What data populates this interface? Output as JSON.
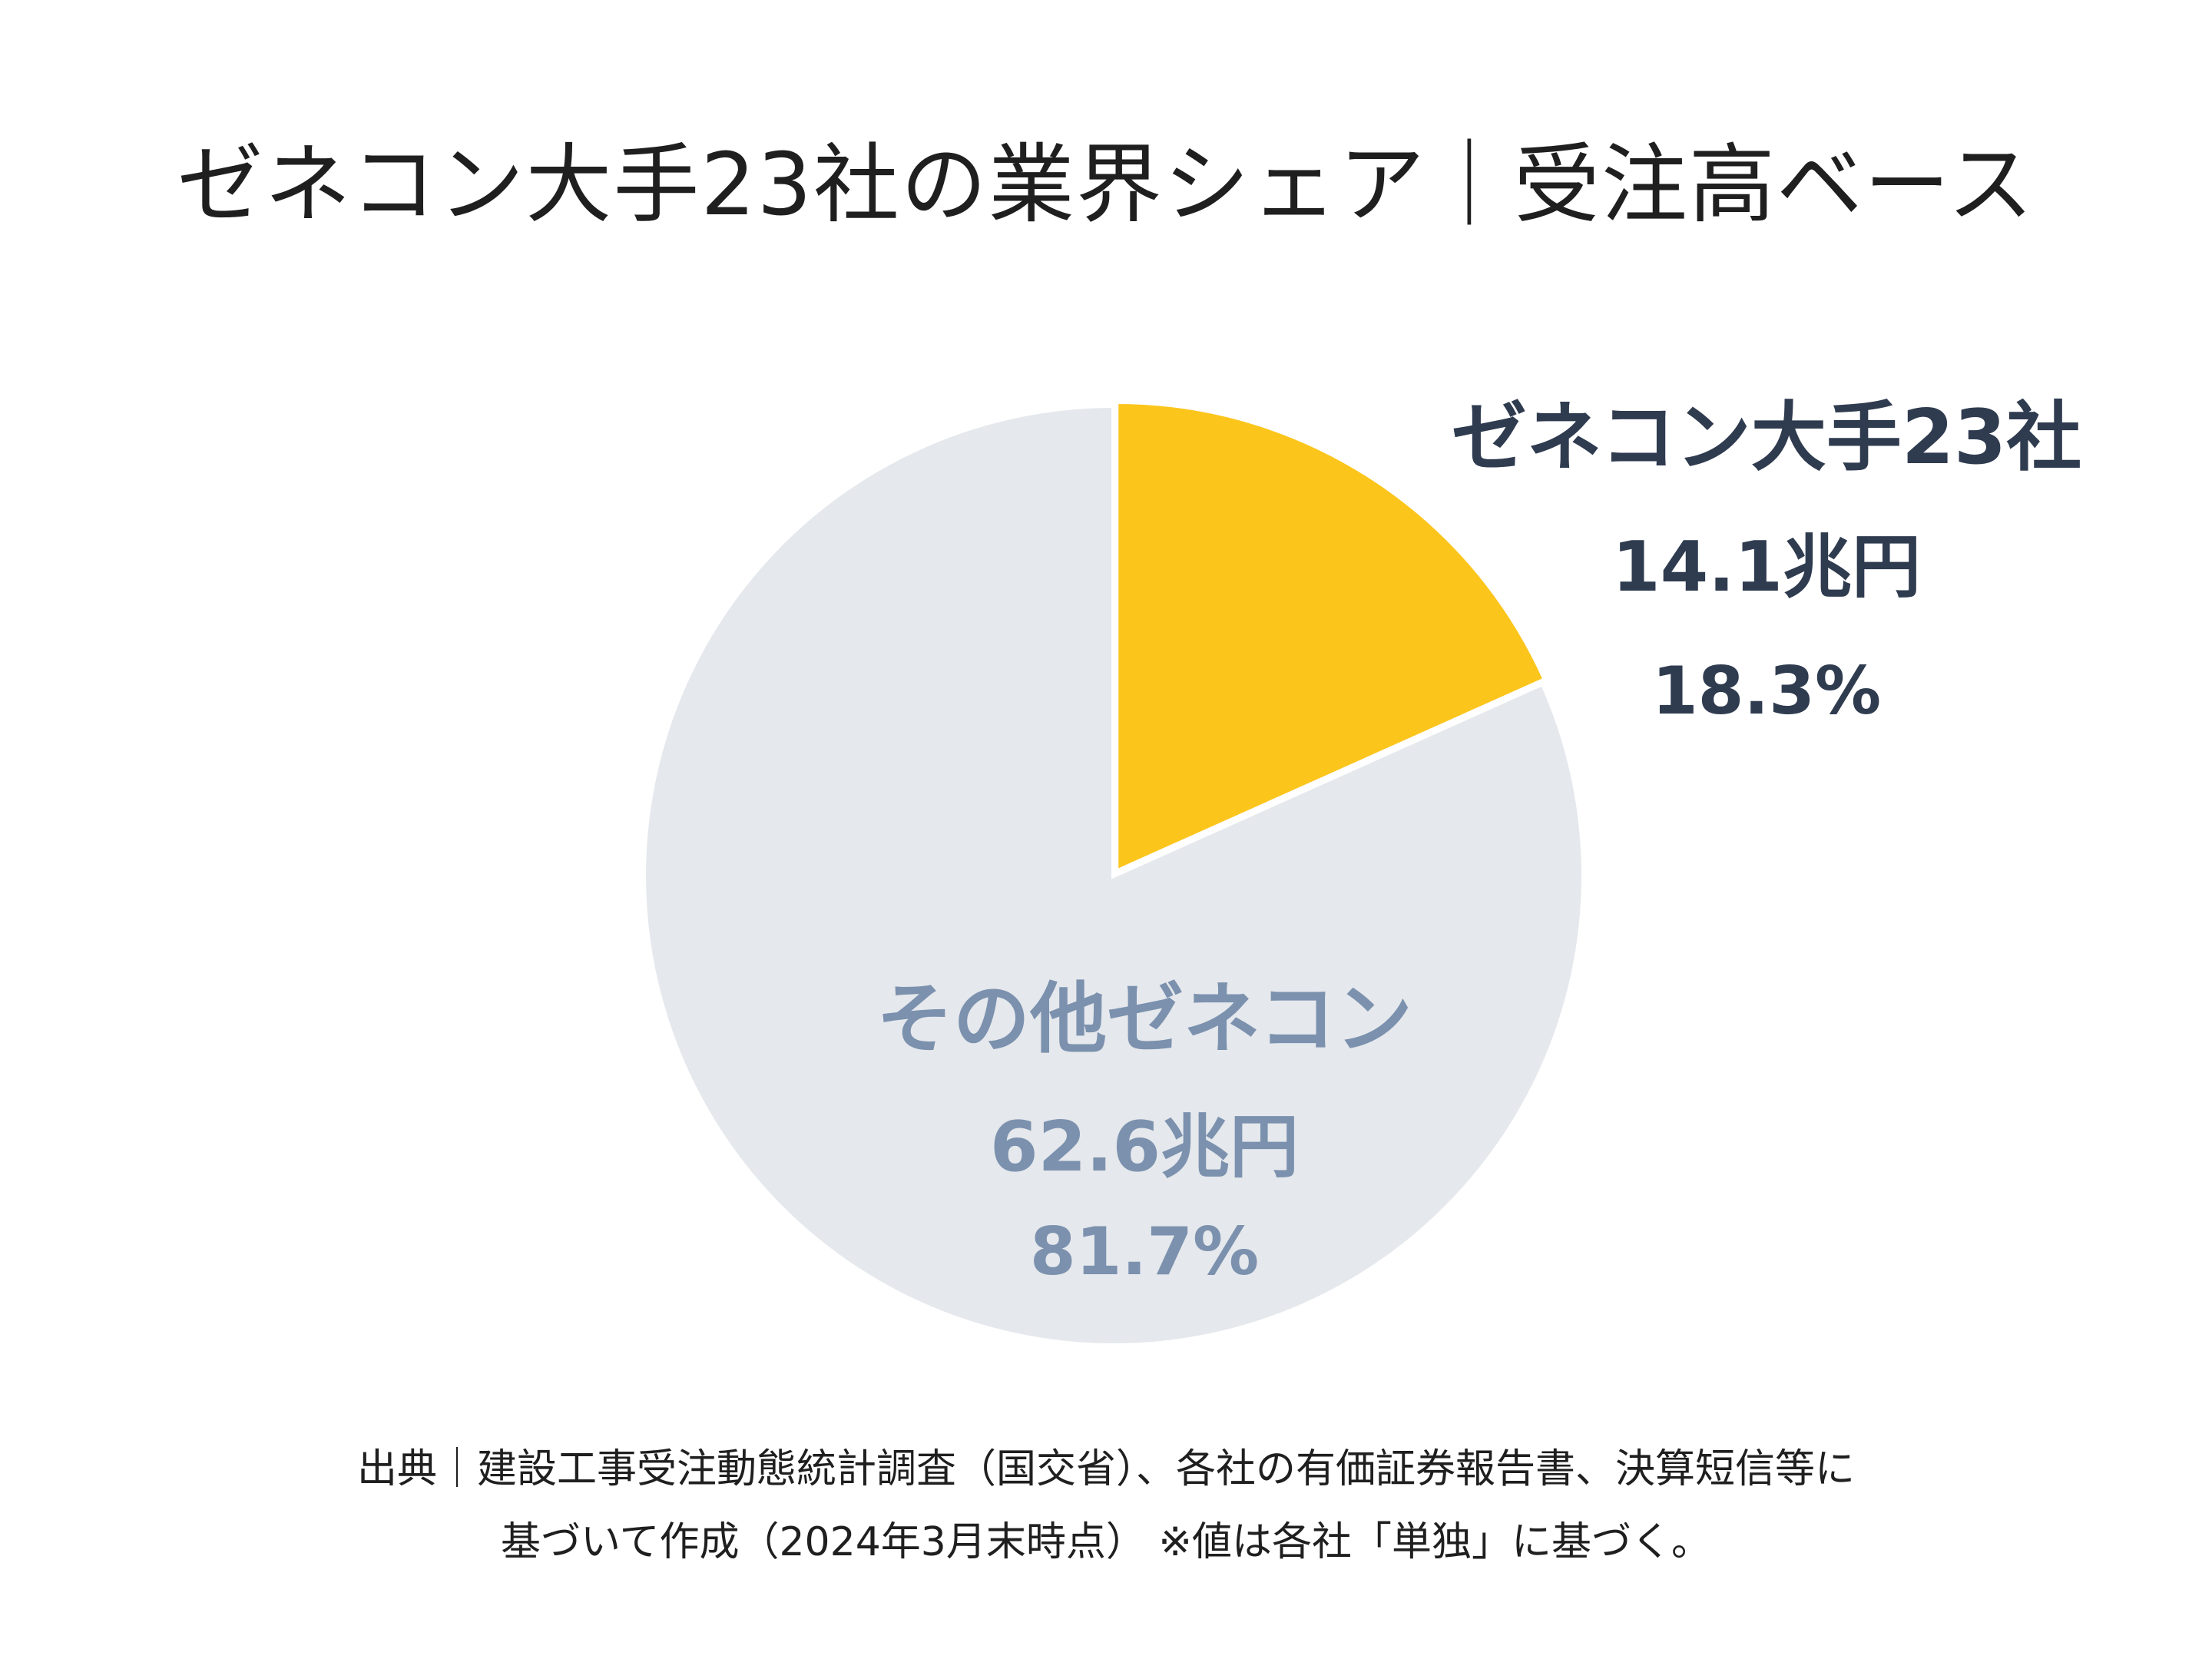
{
  "title": "ゼネコン大手23社の業界シェア｜受注高ベース",
  "chart_data": {
    "type": "pie",
    "title": "ゼネコン大手23社の業界シェア｜受注高ベース",
    "slices": [
      {
        "name": "ゼネコン大手23社",
        "amount": "14.1兆円",
        "percent_label": "18.3%",
        "value": 18.3,
        "color": "#fbc51b"
      },
      {
        "name": "その他ゼネコン",
        "amount": "62.6兆円",
        "percent_label": "81.7%",
        "value": 81.7,
        "color": "#e5e8ec"
      }
    ],
    "start": "12 o'clock, clockwise"
  },
  "source": {
    "line1": "出典｜建設工事受注動態統計調査（国交省）、各社の有価証券報告書、決算短信等に",
    "line2": "基づいて作成（2024年3月末時点） ※値は各社「単独」に基づく。"
  }
}
